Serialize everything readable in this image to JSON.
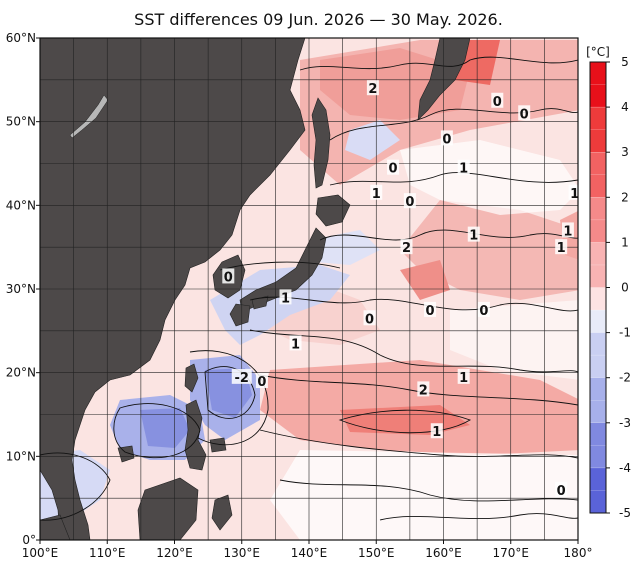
{
  "title": "SST differences 09 Jun. 2026 — 30 May. 2026.",
  "colorbar": {
    "unit": "[°C]",
    "ticks": [
      "5",
      "4",
      "3",
      "2",
      "1",
      "0",
      "-1",
      "-2",
      "-3",
      "-4",
      "-5"
    ],
    "range": [
      -5,
      5
    ],
    "colors": {
      "5": "#e8101a",
      "4": "#ee3b3b",
      "3": "#f26262",
      "2": "#f58a8a",
      "1": "#f8b3b3",
      "0": "#fde3e3",
      "-0": "#e8ebf8",
      "-1": "#c9cff2",
      "-2": "#a7b0ea",
      "-3": "#8089e0",
      "-4": "#5a63d8",
      "-5": "#2a33cc"
    }
  },
  "axes": {
    "lon_labels": [
      "100°E",
      "110°E",
      "120°E",
      "130°E",
      "140°E",
      "150°E",
      "160°E",
      "170°E",
      "180°"
    ],
    "lat_labels": [
      "60°N",
      "50°N",
      "40°N",
      "30°N",
      "20°N",
      "10°N",
      "0°"
    ],
    "lon_range": [
      100,
      180
    ],
    "lat_range": [
      0,
      60
    ]
  },
  "contour_labels": [
    {
      "text": "2",
      "lon": 149.5,
      "lat": 54
    },
    {
      "text": "0",
      "lon": 168,
      "lat": 52.5
    },
    {
      "text": "0",
      "lon": 172,
      "lat": 51
    },
    {
      "text": "0",
      "lon": 160.5,
      "lat": 48
    },
    {
      "text": "0",
      "lon": 152.5,
      "lat": 44.5
    },
    {
      "text": "1",
      "lon": 163,
      "lat": 44.5
    },
    {
      "text": "1",
      "lon": 150,
      "lat": 41.5
    },
    {
      "text": "1",
      "lon": 179.5,
      "lat": 41.5
    },
    {
      "text": "0",
      "lon": 155,
      "lat": 40.5
    },
    {
      "text": "1",
      "lon": 164.5,
      "lat": 36.5
    },
    {
      "text": "1",
      "lon": 178.5,
      "lat": 37
    },
    {
      "text": "2",
      "lon": 154.5,
      "lat": 35
    },
    {
      "text": "1",
      "lon": 177.5,
      "lat": 35
    },
    {
      "text": "0",
      "lon": 128,
      "lat": 31.5
    },
    {
      "text": "1",
      "lon": 136.5,
      "lat": 29
    },
    {
      "text": "0",
      "lon": 149,
      "lat": 26.5
    },
    {
      "text": "0",
      "lon": 158,
      "lat": 27.5
    },
    {
      "text": "0",
      "lon": 166,
      "lat": 27.5
    },
    {
      "text": "1",
      "lon": 138,
      "lat": 23.5
    },
    {
      "text": "-2",
      "lon": 130,
      "lat": 19.5
    },
    {
      "text": "0",
      "lon": 133,
      "lat": 19
    },
    {
      "text": "2",
      "lon": 157,
      "lat": 18
    },
    {
      "text": "1",
      "lon": 163,
      "lat": 19.5
    },
    {
      "text": "1",
      "lon": 159,
      "lat": 13
    },
    {
      "text": "0",
      "lon": 177.5,
      "lat": 6
    }
  ]
}
